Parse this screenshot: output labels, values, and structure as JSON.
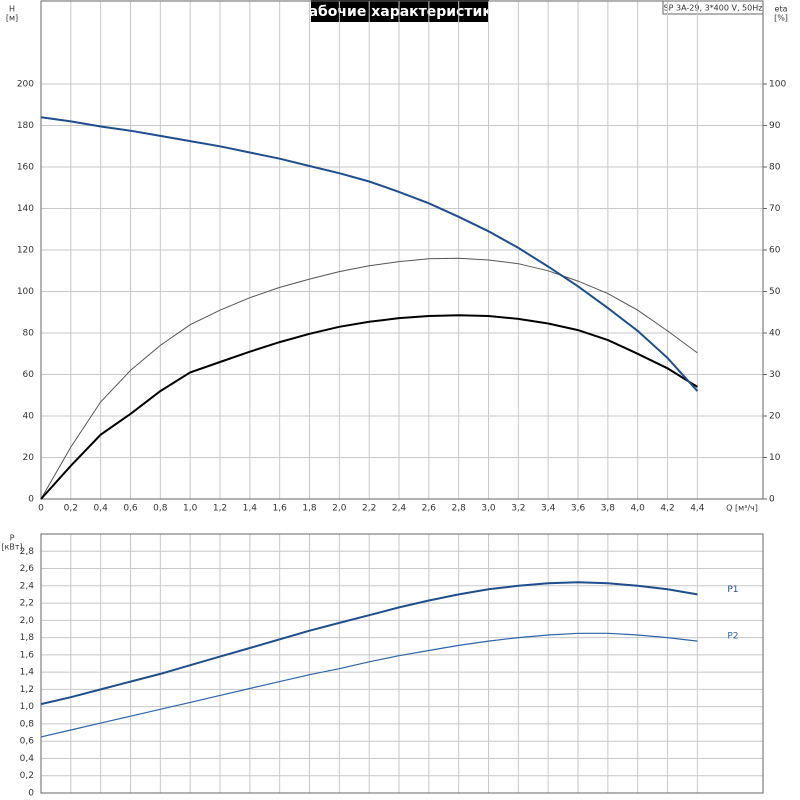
{
  "chart_data": [
    {
      "type": "line",
      "title": "Рабочие характеристики",
      "subtitle": "SP 3A-29, 3*400 V, 50Hz",
      "ylabel": [
        "H",
        "[м]"
      ],
      "y2label": [
        "eta",
        "[%]"
      ],
      "xlabel": "Q [м³/ч]",
      "xlim": [
        0,
        4.84
      ],
      "ylim": [
        0,
        240
      ],
      "y2lim": [
        0,
        120
      ],
      "xticks": [
        0,
        {
          "value": 0.2,
          "label": "0,2"
        },
        {
          "value": 0.4,
          "label": "0,4"
        },
        {
          "value": 0.6,
          "label": "0,6"
        },
        {
          "value": 0.8,
          "label": "0,8"
        },
        {
          "value": 1.0,
          "label": "1,0"
        },
        {
          "value": 1.2,
          "label": "1,2"
        },
        {
          "value": 1.4,
          "label": "1,4"
        },
        {
          "value": 1.6,
          "label": "1,6"
        },
        {
          "value": 1.8,
          "label": "1,8"
        },
        {
          "value": 2.0,
          "label": "2,0"
        },
        {
          "value": 2.2,
          "label": "2,2"
        },
        {
          "value": 2.4,
          "label": "2,4"
        },
        {
          "value": 2.6,
          "label": "2,6"
        },
        {
          "value": 2.8,
          "label": "2,8"
        },
        {
          "value": 3.0,
          "label": "3,0"
        },
        {
          "value": 3.2,
          "label": "3,2"
        },
        {
          "value": 3.4,
          "label": "3,4"
        },
        {
          "value": 3.6,
          "label": "3,6"
        },
        {
          "value": 3.8,
          "label": "3,8"
        },
        {
          "value": 4.0,
          "label": "4,0"
        },
        {
          "value": 4.2,
          "label": "4,2"
        },
        {
          "value": 4.4,
          "label": "4,4"
        }
      ],
      "yticks": [
        0,
        20,
        40,
        60,
        80,
        100,
        120,
        140,
        160,
        180,
        200
      ],
      "y2ticks": [
        0,
        10,
        20,
        30,
        40,
        50,
        60,
        70,
        80,
        90,
        100
      ],
      "grid": true,
      "x": [
        0,
        0.2,
        0.4,
        0.6,
        0.8,
        1.0,
        1.2,
        1.4,
        1.6,
        1.8,
        2.0,
        2.2,
        2.4,
        2.6,
        2.8,
        3.0,
        3.2,
        3.4,
        3.6,
        3.8,
        4.0,
        4.2,
        4.4
      ],
      "series": [
        {
          "color": "#555555",
          "line_width": 1,
          "axis": "y2",
          "values": [
            0,
            12.5,
            23.4,
            31,
            37,
            42,
            45.5,
            48.5,
            51,
            53,
            54.8,
            56.2,
            57.2,
            57.9,
            58,
            57.6,
            56.7,
            55,
            52.5,
            49.5,
            45.5,
            40.5,
            35.2
          ]
        },
        {
          "color": "#000000",
          "line_width": 2,
          "axis": "y2",
          "values": [
            0,
            8,
            15.5,
            20.5,
            26,
            30.5,
            33,
            35.5,
            37.8,
            39.8,
            41.5,
            42.7,
            43.6,
            44.1,
            44.3,
            44.1,
            43.4,
            42.3,
            40.7,
            38.3,
            35,
            31.5,
            27
          ]
        },
        {
          "color": "#1f4e8c",
          "line_width": 2,
          "values": [
            184,
            182,
            179.5,
            177.5,
            175,
            172.5,
            170,
            167,
            164,
            160.5,
            157,
            153,
            148,
            142.5,
            136,
            129,
            121,
            112,
            102.5,
            92,
            81,
            68,
            52
          ]
        }
      ]
    },
    {
      "type": "line",
      "ylabel": [
        "P",
        "[кВт]"
      ],
      "xlim": [
        0,
        4.84
      ],
      "ylim": [
        0,
        3.0
      ],
      "xgrid": [
        0,
        0.2,
        0.4,
        0.6,
        0.8,
        1.0,
        1.2,
        1.4,
        1.6,
        1.8,
        2.0,
        2.2,
        2.4,
        2.6,
        2.8,
        3.0,
        3.2,
        3.4,
        3.6,
        3.8,
        4.0,
        4.2,
        4.4
      ],
      "yticks": [
        0,
        {
          "value": 0.2,
          "label": "0,2"
        },
        {
          "value": 0.4,
          "label": "0,4"
        },
        {
          "value": 0.6,
          "label": "0,6"
        },
        {
          "value": 0.8,
          "label": "0,8"
        },
        {
          "value": 1.0,
          "label": "1,0"
        },
        {
          "value": 1.2,
          "label": "1,2"
        },
        {
          "value": 1.4,
          "label": "1,4"
        },
        {
          "value": 1.6,
          "label": "1,6"
        },
        {
          "value": 1.8,
          "label": "1,8"
        },
        {
          "value": 2.0,
          "label": "2,0"
        },
        {
          "value": 2.2,
          "label": "2,2"
        },
        {
          "value": 2.4,
          "label": "2,4"
        },
        {
          "value": 2.6,
          "label": "2,6"
        },
        {
          "value": 2.8,
          "label": "2,8"
        }
      ],
      "grid": true,
      "x": [
        0,
        0.2,
        0.4,
        0.6,
        0.8,
        1.0,
        1.2,
        1.4,
        1.6,
        1.8,
        2.0,
        2.2,
        2.4,
        2.6,
        2.8,
        3.0,
        3.2,
        3.4,
        3.6,
        3.8,
        4.0,
        4.2,
        4.4
      ],
      "series": [
        {
          "name": "P1",
          "color": "#1f4e8c",
          "line_width": 2,
          "values": [
            1.03,
            1.11,
            1.2,
            1.29,
            1.38,
            1.48,
            1.58,
            1.68,
            1.78,
            1.88,
            1.97,
            2.06,
            2.15,
            2.23,
            2.3,
            2.36,
            2.4,
            2.43,
            2.44,
            2.43,
            2.4,
            2.36,
            2.3
          ]
        },
        {
          "name": "P2",
          "color": "#2e64a8",
          "line_width": 1.2,
          "values": [
            0.65,
            0.73,
            0.81,
            0.89,
            0.97,
            1.05,
            1.13,
            1.21,
            1.29,
            1.37,
            1.44,
            1.52,
            1.59,
            1.65,
            1.71,
            1.76,
            1.8,
            1.83,
            1.85,
            1.85,
            1.83,
            1.8,
            1.76
          ]
        }
      ]
    }
  ]
}
